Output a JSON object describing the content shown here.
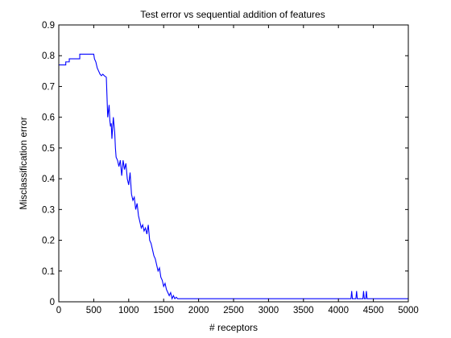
{
  "chart_data": {
    "type": "line",
    "title": "Test error vs sequential addition of features",
    "xlabel": "# receptors",
    "ylabel": "Misclassification error",
    "xlim": [
      0,
      5000
    ],
    "ylim": [
      0,
      0.9
    ],
    "xticks": [
      0,
      500,
      1000,
      1500,
      2000,
      2500,
      3000,
      3500,
      4000,
      4500,
      5000
    ],
    "yticks": [
      0,
      0.1,
      0.2,
      0.3,
      0.4,
      0.5,
      0.6,
      0.7,
      0.8,
      0.9
    ],
    "grid": false,
    "line_color": "#0000ff",
    "series": [
      {
        "x": [
          1,
          100,
          100,
          150,
          150,
          300,
          300,
          500,
          510,
          530,
          550,
          570,
          590,
          610,
          630,
          650,
          680,
          700,
          720,
          730,
          740,
          750,
          760,
          780,
          800,
          810,
          820,
          840,
          860,
          880,
          900,
          920,
          940,
          960,
          980,
          1000,
          1020,
          1040,
          1060,
          1080,
          1100,
          1120,
          1140,
          1160,
          1180,
          1200,
          1220,
          1240,
          1260,
          1280,
          1300,
          1320,
          1340,
          1360,
          1380,
          1400,
          1420,
          1440,
          1460,
          1480,
          1500,
          1520,
          1540,
          1560,
          1580,
          1600,
          1620,
          1640,
          1660,
          1680,
          1700,
          1720,
          2000,
          3000,
          4000,
          4180,
          4190,
          4200,
          4250,
          4260,
          4270,
          4350,
          4360,
          4370,
          4390,
          4400,
          4410,
          5000
        ],
        "y": [
          0.77,
          0.77,
          0.78,
          0.78,
          0.79,
          0.79,
          0.805,
          0.805,
          0.79,
          0.78,
          0.76,
          0.75,
          0.74,
          0.735,
          0.74,
          0.735,
          0.73,
          0.6,
          0.64,
          0.59,
          0.57,
          0.58,
          0.53,
          0.6,
          0.55,
          0.5,
          0.47,
          0.46,
          0.44,
          0.46,
          0.41,
          0.46,
          0.43,
          0.45,
          0.4,
          0.38,
          0.42,
          0.35,
          0.33,
          0.34,
          0.3,
          0.32,
          0.28,
          0.26,
          0.24,
          0.25,
          0.23,
          0.24,
          0.22,
          0.25,
          0.2,
          0.19,
          0.17,
          0.15,
          0.14,
          0.12,
          0.1,
          0.11,
          0.08,
          0.07,
          0.05,
          0.06,
          0.04,
          0.03,
          0.02,
          0.03,
          0.01,
          0.02,
          0.01,
          0.015,
          0.01,
          0.01,
          0.01,
          0.01,
          0.01,
          0.01,
          0.035,
          0.01,
          0.01,
          0.035,
          0.01,
          0.01,
          0.035,
          0.01,
          0.01,
          0.035,
          0.01,
          0.01
        ]
      }
    ]
  }
}
